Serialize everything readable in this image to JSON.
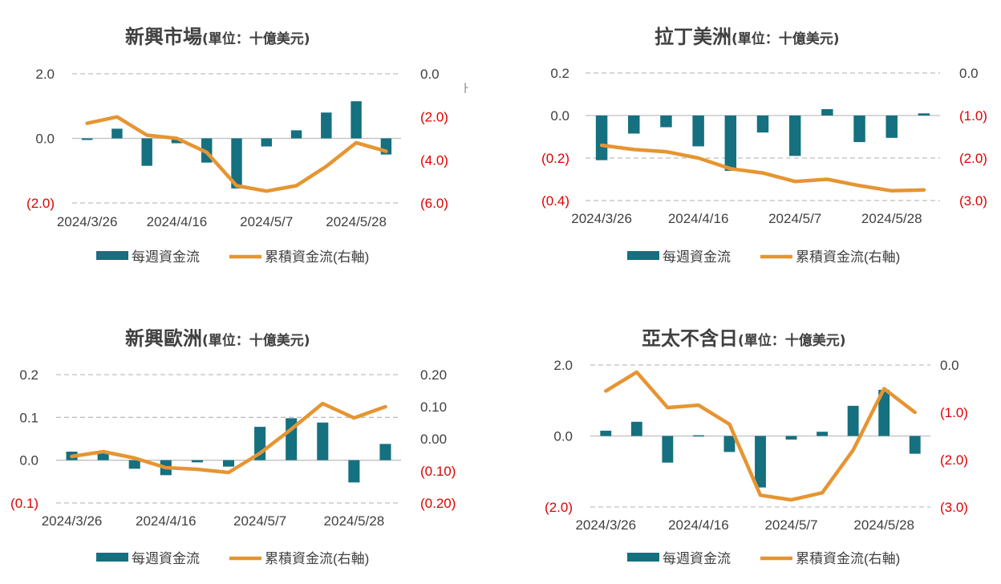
{
  "colors": {
    "bar": "#15707F",
    "line": "#E69532",
    "negative_label": "#E00000",
    "grid": "#BFBFBF",
    "text": "#404040"
  },
  "legend": {
    "bar_label": "每週資金流",
    "line_label": "累積資金流(右軸)"
  },
  "stray_mark": "ㅏ",
  "chart_data": [
    {
      "type": "bar+line",
      "title": "新興市場",
      "unit": "(單位：十億美元)",
      "x_tick_labels": [
        "2024/3/26",
        "2024/4/16",
        "2024/5/7",
        "2024/5/28"
      ],
      "x_tick_index": [
        0,
        3,
        6,
        9
      ],
      "left_ticks": [
        "2.0",
        "0.0",
        "(2.0)"
      ],
      "right_ticks": [
        "0.0",
        "(2.0)",
        "(4.0)",
        "(6.0)"
      ],
      "left_axis": {
        "min": -2,
        "max": 2,
        "ticks": [
          2,
          0,
          -2
        ]
      },
      "right_axis": {
        "min": -6,
        "max": 0,
        "ticks": [
          0,
          -2,
          -4,
          -6
        ]
      },
      "series": [
        {
          "name": "每週資金流",
          "type": "bar",
          "axis": "left",
          "values": [
            -0.05,
            0.3,
            -0.85,
            -0.15,
            -0.75,
            -1.55,
            -0.25,
            0.25,
            0.8,
            1.15,
            -0.5
          ]
        },
        {
          "name": "累積資金流(右軸)",
          "type": "line",
          "axis": "right",
          "values": [
            -2.3,
            -2.0,
            -2.85,
            -3.0,
            -3.65,
            -5.2,
            -5.45,
            -5.2,
            -4.3,
            -3.2,
            -3.6
          ]
        }
      ]
    },
    {
      "type": "bar+line",
      "title": "拉丁美洲",
      "unit": "(單位：十億美元)",
      "x_tick_labels": [
        "2024/3/26",
        "2024/4/16",
        "2024/5/7",
        "2024/5/28"
      ],
      "x_tick_index": [
        0,
        3,
        6,
        9
      ],
      "left_ticks": [
        "0.2",
        "0.0",
        "(0.2)",
        "(0.4)"
      ],
      "right_ticks": [
        "0.0",
        "(1.0)",
        "(2.0)",
        "(3.0)"
      ],
      "left_axis": {
        "min": -0.4,
        "max": 0.2,
        "ticks": [
          0.2,
          0,
          -0.2,
          -0.4
        ]
      },
      "right_axis": {
        "min": -3,
        "max": 0,
        "ticks": [
          0,
          -1,
          -2,
          -3
        ]
      },
      "series": [
        {
          "name": "每週資金流",
          "type": "bar",
          "axis": "left",
          "values": [
            -0.21,
            -0.085,
            -0.055,
            -0.145,
            -0.26,
            -0.08,
            -0.19,
            0.03,
            -0.125,
            -0.105,
            0.01
          ]
        },
        {
          "name": "累積資金流(右軸)",
          "type": "line",
          "axis": "right",
          "values": [
            -1.7,
            -1.8,
            -1.85,
            -2.0,
            -2.25,
            -2.35,
            -2.55,
            -2.5,
            -2.65,
            -2.77,
            -2.75
          ]
        }
      ]
    },
    {
      "type": "bar+line",
      "title": "新興歐洲",
      "unit": "(單位：十億美元)",
      "x_tick_labels": [
        "2024/3/26",
        "2024/4/16",
        "2024/5/7",
        "2024/5/28"
      ],
      "x_tick_index": [
        0,
        3,
        6,
        9
      ],
      "left_ticks": [
        "0.2",
        "0.1",
        "0.0",
        "(0.1)"
      ],
      "right_ticks": [
        "0.20",
        "0.10",
        "0.00",
        "(0.10)",
        "(0.20)"
      ],
      "left_axis": {
        "min": -0.1,
        "max": 0.2,
        "ticks": [
          0.2,
          0.1,
          0,
          -0.1
        ]
      },
      "right_axis": {
        "min": -0.2,
        "max": 0.2,
        "ticks": [
          0.2,
          0.1,
          0,
          -0.1,
          -0.2
        ]
      },
      "series": [
        {
          "name": "每週資金流",
          "type": "bar",
          "axis": "left",
          "values": [
            0.02,
            0.02,
            -0.02,
            -0.035,
            -0.005,
            -0.015,
            0.078,
            0.098,
            0.088,
            -0.052,
            0.038
          ]
        },
        {
          "name": "累積資金流(右軸)",
          "type": "line",
          "axis": "right",
          "values": [
            -0.055,
            -0.04,
            -0.06,
            -0.09,
            -0.095,
            -0.105,
            -0.045,
            0.03,
            0.11,
            0.065,
            0.1
          ]
        }
      ]
    },
    {
      "type": "bar+line",
      "title": "亞太不含日",
      "unit": "(單位：十億美元)",
      "x_tick_labels": [
        "2024/3/26",
        "2024/4/16",
        "2024/5/7",
        "2024/5/28"
      ],
      "x_tick_index": [
        0,
        3,
        6,
        9
      ],
      "left_ticks": [
        "2.0",
        "0.0",
        "(2.0)"
      ],
      "right_ticks": [
        "0.0",
        "(1.0)",
        "(2.0)",
        "(3.0)"
      ],
      "left_axis": {
        "min": -2,
        "max": 2,
        "ticks": [
          2,
          0,
          -2
        ]
      },
      "right_axis": {
        "min": -3,
        "max": 0,
        "ticks": [
          0,
          -1,
          -2,
          -3
        ]
      },
      "series": [
        {
          "name": "每週資金流",
          "type": "bar",
          "axis": "left",
          "values": [
            0.15,
            0.4,
            -0.75,
            0.02,
            -0.45,
            -1.45,
            -0.1,
            0.12,
            0.85,
            1.3,
            -0.5
          ]
        },
        {
          "name": "累積資金流(右軸)",
          "type": "line",
          "axis": "right",
          "values": [
            -0.55,
            -0.15,
            -0.9,
            -0.85,
            -1.25,
            -2.75,
            -2.85,
            -2.7,
            -1.8,
            -0.5,
            -1.0
          ]
        }
      ]
    }
  ]
}
